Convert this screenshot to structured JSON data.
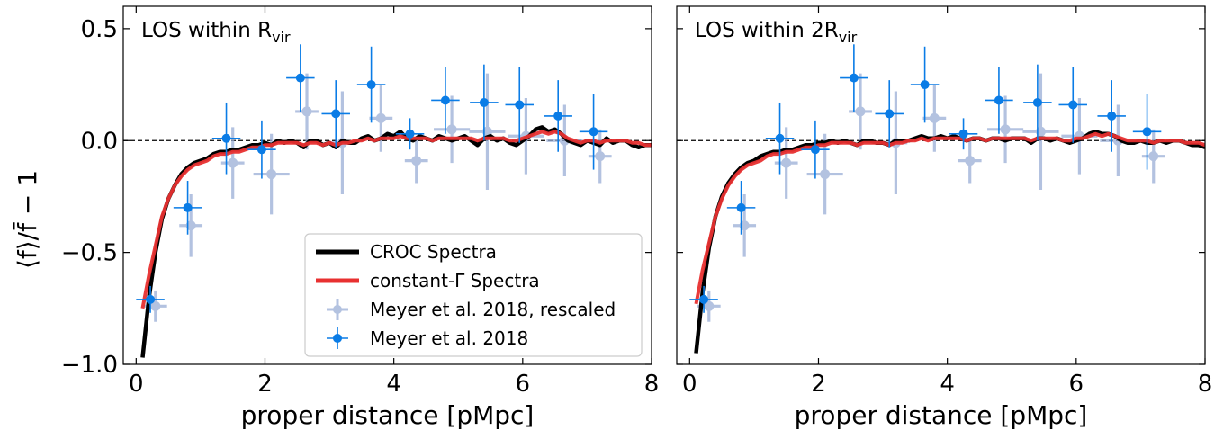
{
  "figure": {
    "ylabel": "⟨f⟩/f̄ − 1"
  },
  "chart_data": [
    {
      "type": "line",
      "panel_label": "LOS within R",
      "panel_label_sub": "vir",
      "xlabel": "proper distance [pMpc]",
      "ylabel": "⟨f⟩/f̄ − 1",
      "xlim": [
        -0.2,
        8
      ],
      "ylim": [
        -1.0,
        0.6
      ],
      "xticks": [
        0,
        2,
        4,
        6,
        8
      ],
      "yticks": [
        -1.0,
        -0.5,
        0.0,
        0.5
      ],
      "ytick_labels": [
        "−1.0",
        "−0.5",
        "0.0",
        "0.5"
      ],
      "reference_line_y": 0.0,
      "legend_location": "lower-right",
      "series": [
        {
          "name": "CROC Spectra",
          "kind": "line",
          "color": "#000000",
          "x": [
            0.1,
            0.2,
            0.3,
            0.4,
            0.5,
            0.6,
            0.7,
            0.8,
            0.9,
            1.0,
            1.1,
            1.2,
            1.3,
            1.4,
            1.5,
            1.6,
            1.7,
            1.8,
            1.9,
            2.0,
            2.1,
            2.2,
            2.3,
            2.4,
            2.5,
            2.6,
            2.7,
            2.8,
            2.9,
            3.0,
            3.1,
            3.2,
            3.3,
            3.4,
            3.5,
            3.6,
            3.7,
            3.8,
            3.9,
            4.0,
            4.1,
            4.2,
            4.3,
            4.4,
            4.5,
            4.6,
            4.7,
            4.8,
            4.9,
            5.0,
            5.1,
            5.2,
            5.3,
            5.4,
            5.5,
            5.6,
            5.7,
            5.8,
            5.9,
            6.0,
            6.1,
            6.2,
            6.3,
            6.4,
            6.5,
            6.6,
            6.7,
            6.8,
            6.9,
            7.0,
            7.1,
            7.2,
            7.3,
            7.4,
            7.5,
            7.6,
            7.7,
            7.8,
            7.9,
            8.0
          ],
          "y": [
            -0.97,
            -0.7,
            -0.5,
            -0.35,
            -0.26,
            -0.2,
            -0.15,
            -0.12,
            -0.1,
            -0.09,
            -0.08,
            -0.06,
            -0.05,
            -0.05,
            -0.04,
            -0.04,
            -0.03,
            -0.02,
            -0.02,
            -0.01,
            -0.02,
            0.0,
            -0.01,
            0.0,
            -0.01,
            -0.03,
            0.0,
            0.0,
            -0.02,
            -0.01,
            -0.03,
            0.0,
            -0.01,
            -0.01,
            0.01,
            0.02,
            0.0,
            0.01,
            0.03,
            0.02,
            0.04,
            0.01,
            0.0,
            0.02,
            0.01,
            0.0,
            0.02,
            0.01,
            0.0,
            0.01,
            0.02,
            0.0,
            -0.02,
            0.01,
            0.02,
            0.0,
            0.01,
            -0.01,
            -0.02,
            0.0,
            0.02,
            0.05,
            0.06,
            0.04,
            0.05,
            0.03,
            0.0,
            -0.01,
            -0.02,
            0.0,
            -0.01,
            -0.02,
            0.01,
            -0.01,
            0.0,
            0.0,
            -0.02,
            -0.03,
            -0.02,
            -0.02
          ]
        },
        {
          "name": "constant-Γ Spectra",
          "kind": "line",
          "color": "#e83030",
          "x": [
            0.1,
            0.2,
            0.3,
            0.4,
            0.5,
            0.6,
            0.7,
            0.8,
            0.9,
            1.0,
            1.1,
            1.2,
            1.3,
            1.4,
            1.5,
            1.6,
            1.7,
            1.8,
            1.9,
            2.0,
            2.1,
            2.2,
            2.3,
            2.4,
            2.5,
            2.6,
            2.7,
            2.8,
            2.9,
            3.0,
            3.1,
            3.2,
            3.3,
            3.4,
            3.5,
            3.6,
            3.7,
            3.8,
            3.9,
            4.0,
            4.1,
            4.2,
            4.3,
            4.4,
            4.5,
            4.6,
            4.7,
            4.8,
            4.9,
            5.0,
            5.1,
            5.2,
            5.3,
            5.4,
            5.5,
            5.6,
            5.7,
            5.8,
            5.9,
            6.0,
            6.1,
            6.2,
            6.3,
            6.4,
            6.5,
            6.6,
            6.7,
            6.8,
            6.9,
            7.0,
            7.1,
            7.2,
            7.3,
            7.4,
            7.5,
            7.6,
            7.7,
            7.8,
            7.9,
            8.0
          ],
          "y": [
            -0.75,
            -0.6,
            -0.47,
            -0.34,
            -0.26,
            -0.2,
            -0.16,
            -0.13,
            -0.11,
            -0.1,
            -0.09,
            -0.07,
            -0.06,
            -0.06,
            -0.05,
            -0.05,
            -0.04,
            -0.03,
            -0.03,
            -0.02,
            -0.02,
            -0.01,
            -0.01,
            -0.01,
            -0.01,
            -0.02,
            -0.01,
            -0.01,
            -0.02,
            -0.01,
            -0.02,
            -0.01,
            -0.01,
            0.0,
            0.0,
            0.01,
            0.0,
            0.01,
            0.01,
            0.01,
            0.02,
            0.01,
            0.01,
            0.01,
            0.01,
            0.0,
            0.01,
            0.01,
            0.01,
            0.01,
            0.01,
            0.01,
            0.0,
            0.01,
            0.01,
            0.01,
            0.01,
            0.0,
            0.0,
            0.01,
            0.02,
            0.03,
            0.04,
            0.03,
            0.04,
            0.03,
            0.01,
            0.0,
            -0.01,
            0.0,
            0.0,
            -0.01,
            0.0,
            0.0,
            0.0,
            0.0,
            -0.01,
            -0.01,
            -0.02,
            -0.02
          ]
        },
        {
          "name": "Meyer et al. 2018, rescaled",
          "kind": "errorbar",
          "color": "#9aaed6",
          "x": [
            0.3,
            0.85,
            1.5,
            2.1,
            2.65,
            3.2,
            3.8,
            4.35,
            4.9,
            5.45,
            6.05,
            6.65,
            7.2
          ],
          "y": [
            -0.74,
            -0.38,
            -0.1,
            -0.15,
            0.13,
            -0.01,
            0.1,
            -0.09,
            0.05,
            0.04,
            0.02,
            0.0,
            -0.07
          ],
          "xerr": [
            0.18,
            0.18,
            0.18,
            0.28,
            0.18,
            0.18,
            0.18,
            0.18,
            0.28,
            0.28,
            0.28,
            0.28,
            0.18
          ],
          "yerr": [
            0.07,
            0.14,
            0.16,
            0.18,
            0.17,
            0.23,
            0.15,
            0.1,
            0.15,
            0.26,
            0.17,
            0.16,
            0.12
          ]
        },
        {
          "name": "Meyer et al. 2018",
          "kind": "errorbar",
          "color": "#0a7ce6",
          "x": [
            0.22,
            0.8,
            1.4,
            1.95,
            2.55,
            3.1,
            3.65,
            4.25,
            4.8,
            5.4,
            5.95,
            6.55,
            7.1
          ],
          "y": [
            -0.71,
            -0.3,
            0.01,
            -0.04,
            0.28,
            0.12,
            0.25,
            0.03,
            0.18,
            0.17,
            0.16,
            0.11,
            0.04
          ],
          "xerr": [
            0.22,
            0.22,
            0.22,
            0.22,
            0.22,
            0.22,
            0.22,
            0.22,
            0.22,
            0.22,
            0.22,
            0.22,
            0.22
          ],
          "yerr": [
            0.06,
            0.12,
            0.16,
            0.13,
            0.15,
            0.15,
            0.17,
            0.07,
            0.15,
            0.17,
            0.17,
            0.16,
            0.17
          ]
        }
      ]
    },
    {
      "type": "line",
      "panel_label": "LOS within 2R",
      "panel_label_sub": "vir",
      "xlabel": "proper distance [pMpc]",
      "xlim": [
        -0.2,
        8
      ],
      "ylim": [
        -1.0,
        0.6
      ],
      "xticks": [
        0,
        2,
        4,
        6,
        8
      ],
      "yticks": [
        -1.0,
        -0.5,
        0.0,
        0.5
      ],
      "reference_line_y": 0.0,
      "series": [
        {
          "name": "CROC Spectra",
          "kind": "line",
          "color": "#000000",
          "x": [
            0.1,
            0.2,
            0.3,
            0.4,
            0.5,
            0.6,
            0.7,
            0.8,
            0.9,
            1.0,
            1.1,
            1.2,
            1.3,
            1.4,
            1.5,
            1.6,
            1.7,
            1.8,
            1.9,
            2.0,
            2.1,
            2.2,
            2.3,
            2.4,
            2.5,
            2.6,
            2.7,
            2.8,
            2.9,
            3.0,
            3.1,
            3.2,
            3.3,
            3.4,
            3.5,
            3.6,
            3.7,
            3.8,
            3.9,
            4.0,
            4.1,
            4.2,
            4.3,
            4.4,
            4.5,
            4.6,
            4.7,
            4.8,
            4.9,
            5.0,
            5.1,
            5.2,
            5.3,
            5.4,
            5.5,
            5.6,
            5.7,
            5.8,
            5.9,
            6.0,
            6.1,
            6.2,
            6.3,
            6.4,
            6.5,
            6.6,
            6.7,
            6.8,
            6.9,
            7.0,
            7.1,
            7.2,
            7.3,
            7.4,
            7.5,
            7.6,
            7.7,
            7.8,
            7.9,
            8.0
          ],
          "y": [
            -0.95,
            -0.68,
            -0.48,
            -0.34,
            -0.25,
            -0.19,
            -0.15,
            -0.12,
            -0.1,
            -0.09,
            -0.07,
            -0.06,
            -0.05,
            -0.05,
            -0.04,
            -0.04,
            -0.03,
            -0.02,
            -0.02,
            -0.01,
            -0.01,
            0.0,
            -0.01,
            0.0,
            -0.01,
            -0.02,
            0.0,
            0.0,
            -0.01,
            -0.01,
            -0.02,
            0.0,
            0.0,
            0.0,
            0.01,
            0.02,
            0.01,
            0.01,
            0.02,
            0.01,
            0.02,
            0.01,
            0.0,
            0.01,
            0.01,
            0.0,
            0.01,
            0.01,
            0.0,
            0.01,
            0.01,
            0.01,
            -0.01,
            0.01,
            0.01,
            0.0,
            0.01,
            0.0,
            -0.01,
            0.0,
            0.01,
            0.03,
            0.04,
            0.03,
            0.03,
            0.02,
            0.0,
            -0.01,
            -0.01,
            0.0,
            -0.01,
            -0.01,
            0.0,
            -0.01,
            0.0,
            0.0,
            -0.01,
            -0.02,
            -0.02,
            -0.03
          ]
        },
        {
          "name": "constant-Γ Spectra",
          "kind": "line",
          "color": "#e83030",
          "x": [
            0.1,
            0.2,
            0.3,
            0.4,
            0.5,
            0.6,
            0.7,
            0.8,
            0.9,
            1.0,
            1.1,
            1.2,
            1.3,
            1.4,
            1.5,
            1.6,
            1.7,
            1.8,
            1.9,
            2.0,
            2.1,
            2.2,
            2.3,
            2.4,
            2.5,
            2.6,
            2.7,
            2.8,
            2.9,
            3.0,
            3.1,
            3.2,
            3.3,
            3.4,
            3.5,
            3.6,
            3.7,
            3.8,
            3.9,
            4.0,
            4.1,
            4.2,
            4.3,
            4.4,
            4.5,
            4.6,
            4.7,
            4.8,
            4.9,
            5.0,
            5.1,
            5.2,
            5.3,
            5.4,
            5.5,
            5.6,
            5.7,
            5.8,
            5.9,
            6.0,
            6.1,
            6.2,
            6.3,
            6.4,
            6.5,
            6.6,
            6.7,
            6.8,
            6.9,
            7.0,
            7.1,
            7.2,
            7.3,
            7.4,
            7.5,
            7.6,
            7.7,
            7.8,
            7.9,
            8.0
          ],
          "y": [
            -0.73,
            -0.58,
            -0.46,
            -0.34,
            -0.26,
            -0.2,
            -0.16,
            -0.13,
            -0.11,
            -0.1,
            -0.09,
            -0.07,
            -0.06,
            -0.06,
            -0.05,
            -0.05,
            -0.04,
            -0.03,
            -0.03,
            -0.02,
            -0.02,
            -0.01,
            -0.01,
            -0.01,
            -0.01,
            -0.02,
            -0.01,
            -0.01,
            -0.01,
            -0.01,
            -0.02,
            -0.01,
            -0.01,
            0.0,
            0.0,
            0.01,
            0.0,
            0.01,
            0.01,
            0.01,
            0.01,
            0.01,
            0.0,
            0.01,
            0.01,
            0.0,
            0.01,
            0.01,
            0.01,
            0.01,
            0.01,
            0.01,
            0.0,
            0.01,
            0.01,
            0.01,
            0.01,
            0.0,
            0.0,
            0.01,
            0.01,
            0.02,
            0.03,
            0.02,
            0.03,
            0.02,
            0.01,
            0.0,
            0.0,
            0.0,
            0.0,
            -0.01,
            0.0,
            0.0,
            0.0,
            0.0,
            -0.01,
            -0.01,
            -0.01,
            -0.02
          ]
        },
        {
          "name": "Meyer et al. 2018, rescaled",
          "kind": "errorbar",
          "color": "#9aaed6",
          "x": [
            0.3,
            0.85,
            1.5,
            2.1,
            2.65,
            3.2,
            3.8,
            4.35,
            4.9,
            5.45,
            6.05,
            6.65,
            7.2
          ],
          "y": [
            -0.74,
            -0.38,
            -0.1,
            -0.15,
            0.13,
            -0.01,
            0.1,
            -0.09,
            0.05,
            0.04,
            0.02,
            0.0,
            -0.07
          ],
          "xerr": [
            0.18,
            0.18,
            0.18,
            0.28,
            0.18,
            0.18,
            0.18,
            0.18,
            0.28,
            0.28,
            0.28,
            0.28,
            0.18
          ],
          "yerr": [
            0.07,
            0.14,
            0.16,
            0.18,
            0.17,
            0.23,
            0.15,
            0.1,
            0.15,
            0.26,
            0.17,
            0.16,
            0.12
          ]
        },
        {
          "name": "Meyer et al. 2018",
          "kind": "errorbar",
          "color": "#0a7ce6",
          "x": [
            0.22,
            0.8,
            1.4,
            1.95,
            2.55,
            3.1,
            3.65,
            4.25,
            4.8,
            5.4,
            5.95,
            6.55,
            7.1
          ],
          "y": [
            -0.71,
            -0.3,
            0.01,
            -0.04,
            0.28,
            0.12,
            0.25,
            0.03,
            0.18,
            0.17,
            0.16,
            0.11,
            0.04
          ],
          "xerr": [
            0.22,
            0.22,
            0.22,
            0.22,
            0.22,
            0.22,
            0.22,
            0.22,
            0.22,
            0.22,
            0.22,
            0.22,
            0.22
          ],
          "yerr": [
            0.06,
            0.12,
            0.16,
            0.13,
            0.15,
            0.15,
            0.17,
            0.07,
            0.15,
            0.17,
            0.17,
            0.16,
            0.17
          ]
        }
      ]
    }
  ]
}
